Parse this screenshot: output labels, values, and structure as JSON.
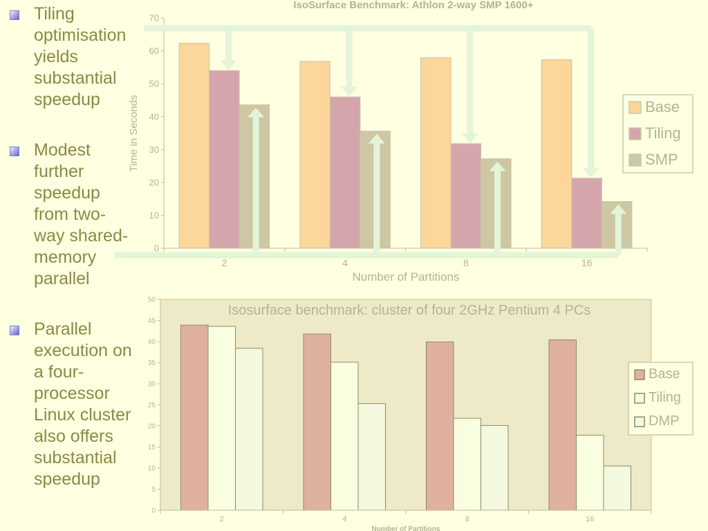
{
  "bullets": [
    {
      "text": "Tiling\noptimisation\nyields\nsubstantial\nspeedup"
    },
    {
      "text": "Modest\nfurther\nspeedup\nfrom two-\nway shared-\nmemory\nparallel"
    },
    {
      "text": "Parallel\nexecution on\na four-\nprocessor\nLinux cluster\nalso offers\nsubstantial\nspeedup"
    }
  ],
  "colors": {
    "base1": "#fdd699",
    "tiling1": "#d4a6ac",
    "smp1": "#cdc7a4",
    "base2": "#e0b09f",
    "tiling2": "#fafee0",
    "dmp2": "#f4f8df",
    "text": "#8a8a44",
    "arrow": "#e4f4d8",
    "plot2_bg": "#eeeac8"
  },
  "chart_data": [
    {
      "type": "bar",
      "title": "IsoSurface Benchmark: Athlon 2-way SMP 1600+",
      "xlabel": "Number of Partitions",
      "ylabel": "Time in Seconds",
      "categories": [
        "2",
        "4",
        "8",
        "16"
      ],
      "yticks": [
        "0",
        "10",
        "20",
        "30",
        "40",
        "50",
        "60",
        "70"
      ],
      "ylim": [
        0,
        70
      ],
      "series": [
        {
          "name": "Base",
          "values": [
            62.3,
            56.8,
            57.9,
            57.3
          ]
        },
        {
          "name": "Tiling",
          "values": [
            54.0,
            46.0,
            31.8,
            21.3
          ]
        },
        {
          "name": "SMP",
          "values": [
            43.6,
            35.6,
            27.2,
            14.2
          ]
        }
      ],
      "legend": "right",
      "annotations": "arrows from Base to Tiling bars and up to SMP bars"
    },
    {
      "type": "bar",
      "title": "Isosurface benchmark: cluster of four 2GHz Pentium 4 PCs",
      "xlabel": "Number of Partitions",
      "ylabel": "",
      "categories": [
        "2",
        "4",
        "8",
        "16"
      ],
      "yticks": [
        "0",
        "5",
        "10",
        "15",
        "20",
        "25",
        "30",
        "35",
        "40",
        "45",
        "50"
      ],
      "ylim": [
        0,
        50
      ],
      "series": [
        {
          "name": "Base",
          "values": [
            43.9,
            41.8,
            39.9,
            40.4
          ]
        },
        {
          "name": "Tiling",
          "values": [
            43.6,
            35.1,
            21.8,
            17.8
          ]
        },
        {
          "name": "DMP",
          "values": [
            38.4,
            25.3,
            20.1,
            10.5
          ]
        }
      ],
      "legend": "right",
      "grid": false
    }
  ]
}
